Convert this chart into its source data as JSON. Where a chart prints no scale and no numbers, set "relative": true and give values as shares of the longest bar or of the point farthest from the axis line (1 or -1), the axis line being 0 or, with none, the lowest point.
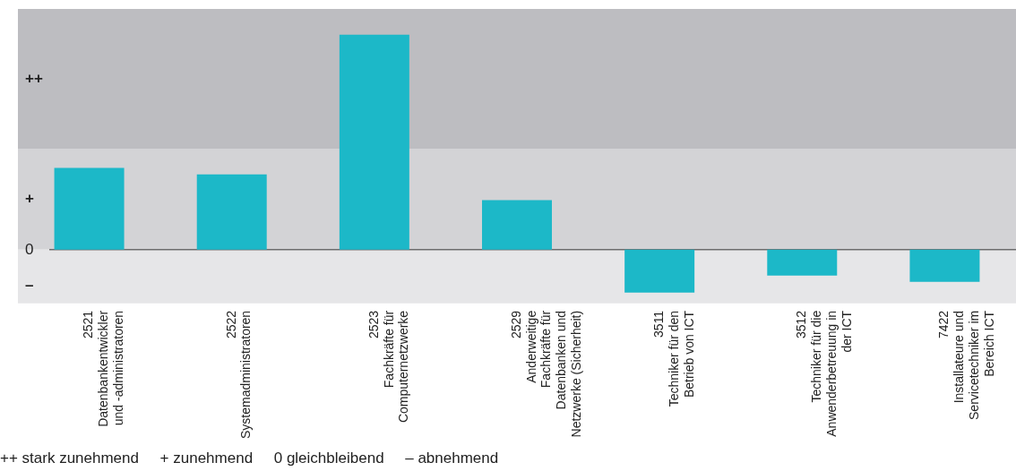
{
  "chart_data": {
    "type": "bar",
    "relative": true,
    "color": "#1cb8c8",
    "categories": [
      "2521 Datenbankentwickler und -administratoren",
      "2522 Systemadministratoren",
      "2523 Fachkräfte für Computernetzwerke",
      "2529 Anderweitige Fachkräfte für Datenbanken und Netzwerke (Sicherheit)",
      "3511 Techniker für den Betrieb von ICT",
      "3512 Techniker für die Anwenderbetreuung in der ICT",
      "7422 Installateure und Servicetechniker im Bereich ICT"
    ],
    "values": [
      0.38,
      0.35,
      1,
      0.23,
      -0.2,
      -0.12,
      -0.15
    ],
    "bands": [
      {
        "axis": "y",
        "from": 0.47,
        "to": 1.12,
        "label": "++",
        "color": "#bdbdc1"
      },
      {
        "axis": "y",
        "from": 0,
        "to": 0.47,
        "label": "+",
        "color": "#d3d3d6"
      },
      {
        "axis": "y",
        "from": -0.25,
        "to": 0,
        "label": "–",
        "color": "#e6e6e8"
      }
    ],
    "ref_lines": [
      {
        "axis": "y",
        "value": 0,
        "label": "0",
        "color": "#333333"
      }
    ],
    "annotations": [
      "++ stark zunehmend     + zunehmend     0 gleichbleibend     – abnehmend"
    ],
    "grid": false,
    "legend": false
  }
}
